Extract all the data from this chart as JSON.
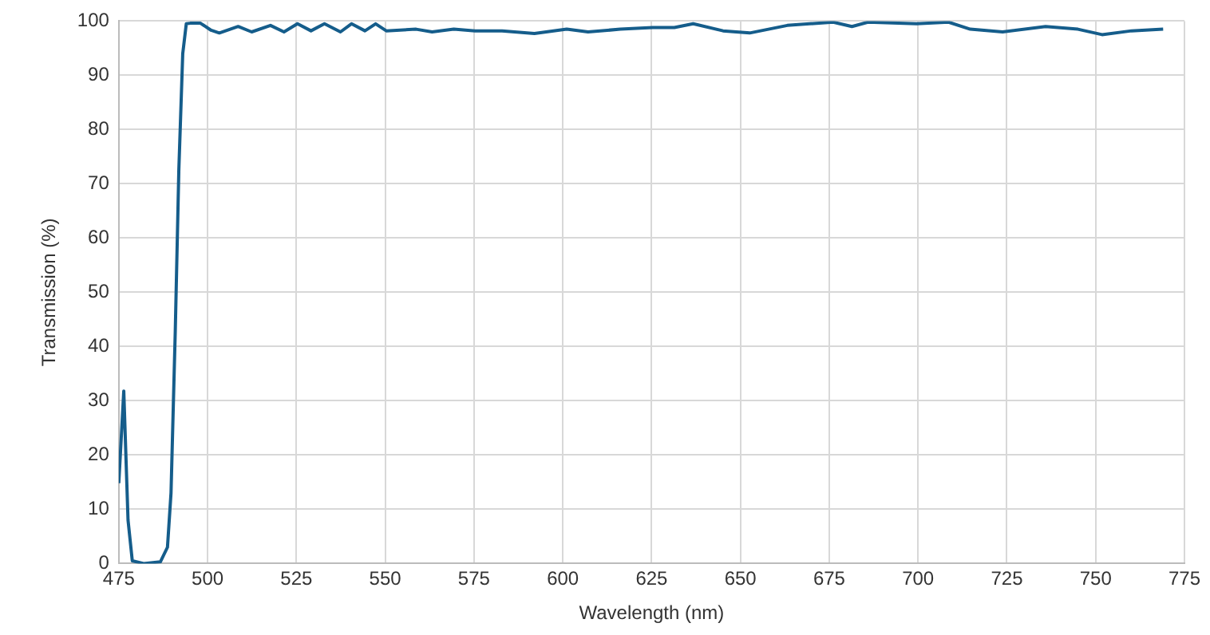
{
  "chart_data": {
    "type": "line",
    "xlabel": "Wavelength (nm)",
    "ylabel": "Transmission (%)",
    "x": [
      475,
      476.4,
      477.6,
      478.8,
      482,
      486.7,
      488.7,
      489.7,
      490.9,
      491.9,
      493,
      494,
      495.1,
      498,
      501,
      503.3,
      508.6,
      512.4,
      517.7,
      521.5,
      525.3,
      529.1,
      532.9,
      537.4,
      540.5,
      544.3,
      547.3,
      550.3,
      558.7,
      563.2,
      569.3,
      575.3,
      582.9,
      592,
      601.1,
      607.1,
      616.2,
      625.3,
      631.4,
      636.7,
      645.1,
      652.6,
      663.2,
      676.1,
      681.4,
      685.9,
      699.6,
      708.6,
      714.7,
      723.8,
      735.9,
      745,
      751.8,
      760.1,
      769
    ],
    "values": [
      14.8,
      31.8,
      8,
      0.5,
      0,
      0.3,
      3,
      13,
      42.9,
      72.5,
      94,
      99.5,
      99.6,
      99.6,
      98.3,
      97.8,
      99,
      98,
      99.2,
      98,
      99.5,
      98.2,
      99.5,
      98,
      99.5,
      98.2,
      99.5,
      98.2,
      98.5,
      98,
      98.5,
      98.2,
      98.2,
      97.7,
      98.5,
      98,
      98.5,
      98.8,
      98.8,
      99.5,
      98.2,
      97.8,
      99.2,
      99.8,
      99,
      99.8,
      99.5,
      99.8,
      98.5,
      98,
      99,
      98.5,
      97.5,
      98.2,
      98.5
    ],
    "color": "#155d8b",
    "xlim": [
      475,
      775
    ],
    "xticks": [
      475,
      500,
      525,
      550,
      575,
      600,
      625,
      650,
      675,
      700,
      725,
      750,
      775
    ],
    "ylim": [
      0,
      100
    ],
    "yticks": [
      0,
      10,
      20,
      30,
      40,
      50,
      60,
      70,
      80,
      90,
      100
    ],
    "grid": true
  }
}
